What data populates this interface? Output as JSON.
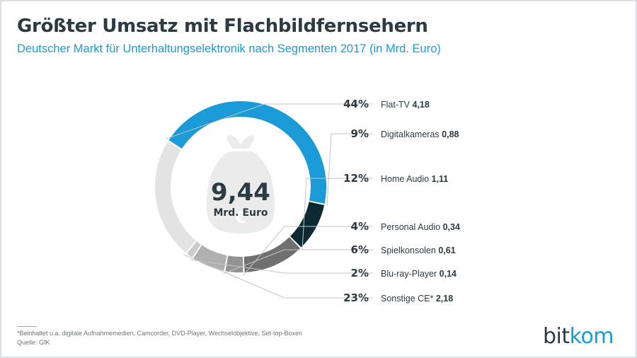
{
  "header": {
    "title": "Größter Umsatz mit Flachbildfernsehern",
    "subtitle": "Deutscher Markt für Unterhaltungselektronik nach Segmenten 2017 (in Mrd. Euro)"
  },
  "chart_data": {
    "type": "pie",
    "title": "Größter Umsatz mit Flachbildfernsehern",
    "subtitle": "Deutscher Markt für Unterhaltungselektronik nach Segmenten 2017 (in Mrd. Euro)",
    "center_value": "9,44",
    "center_unit": "Mrd. Euro",
    "total": 9.44,
    "segments": [
      {
        "label": "Flat-TV",
        "value": 4.18,
        "value_text": "4,18",
        "percent_text": "44%",
        "color": "#1a9ad6"
      },
      {
        "label": "Digitalkameras",
        "value": 0.88,
        "value_text": "0,88",
        "percent_text": "9%",
        "color": "#0d2a33"
      },
      {
        "label": "Home Audio",
        "value": 1.11,
        "value_text": "1,11",
        "percent_text": "12%",
        "color": "#707070"
      },
      {
        "label": "Personal Audio",
        "value": 0.34,
        "value_text": "0,34",
        "percent_text": "4%",
        "color": "#939393"
      },
      {
        "label": "Spielkonsolen",
        "value": 0.61,
        "value_text": "0,61",
        "percent_text": "6%",
        "color": "#b0b0b0"
      },
      {
        "label": "Blu-ray-Player",
        "value": 0.14,
        "value_text": "0,14",
        "percent_text": "2%",
        "color": "#cccccc"
      },
      {
        "label": "Sonstige CE*",
        "value": 2.18,
        "value_text": "2,18",
        "percent_text": "23%",
        "color": "#e3e3e3"
      }
    ]
  },
  "footer": {
    "note": "*Beinhaltet u.a. digitale Aufnahmemedien, Camcorder, DVD-Player, Wechselobjektive, Set-top-Boxen",
    "source": "Quelle: GfK"
  },
  "logo": {
    "part1": "bit",
    "part2": "kom"
  }
}
